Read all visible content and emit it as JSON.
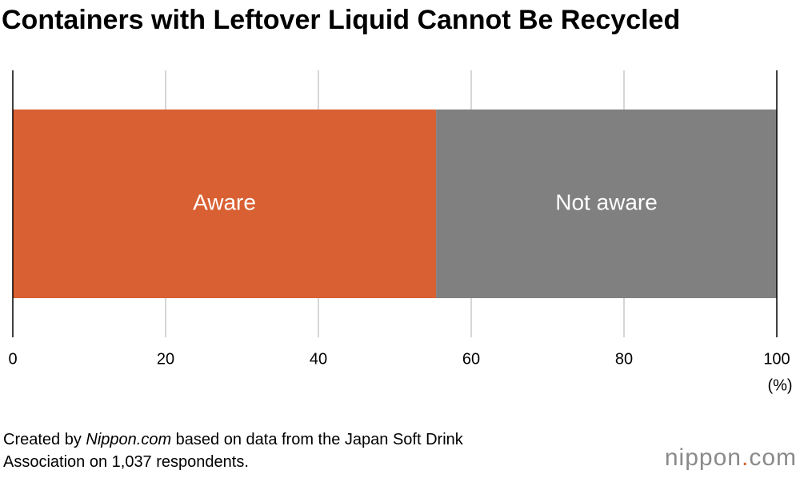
{
  "chart_data": {
    "type": "bar",
    "orientation": "horizontal",
    "stacked": true,
    "title": "Containers with Leftover Liquid Cannot Be Recycled",
    "categories": [
      null
    ],
    "series": [
      {
        "name": "Aware",
        "color": "#d96032",
        "values": [
          55.4
        ]
      },
      {
        "name": "Not aware",
        "color": "#808080",
        "values": [
          44.6
        ]
      }
    ],
    "xlim": [
      0,
      100
    ],
    "xticks": [
      0,
      20,
      40,
      60,
      80,
      100
    ],
    "x_unit": "(%)",
    "grid": true,
    "source": [
      "Created by ",
      "Nippon.com",
      " based on data from the Japan Soft Drink",
      "Association on 1,037 respondents."
    ],
    "logo": [
      "nippon",
      ".",
      "com"
    ]
  }
}
